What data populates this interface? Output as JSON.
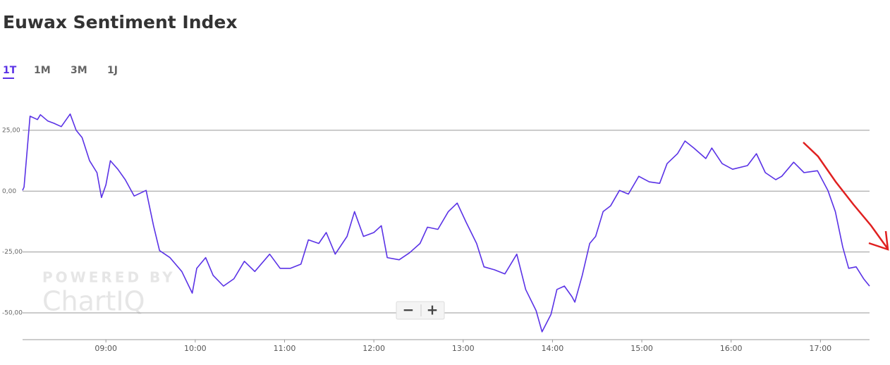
{
  "chart_data": {
    "type": "line",
    "title": "Euwax Sentiment Index",
    "x": [
      "08:04",
      "08:05",
      "08:09",
      "08:14",
      "08:16",
      "08:21",
      "08:25",
      "08:30",
      "08:36",
      "08:40",
      "08:44",
      "08:49",
      "08:54",
      "08:57",
      "09:00",
      "09:03",
      "09:08",
      "09:13",
      "09:19",
      "09:27",
      "09:32",
      "09:36",
      "09:43",
      "09:51",
      "09:58",
      "10:01",
      "10:07",
      "10:12",
      "10:19",
      "10:26",
      "10:33",
      "10:40",
      "10:50",
      "10:57",
      "11:04",
      "11:11",
      "11:16",
      "11:23",
      "11:28",
      "11:34",
      "11:42",
      "11:47",
      "11:53",
      "12:00",
      "12:05",
      "12:09",
      "12:17",
      "12:24",
      "12:31",
      "12:36",
      "12:43",
      "12:50",
      "12:56",
      "13:02",
      "13:09",
      "13:14",
      "13:21",
      "13:28",
      "13:36",
      "13:42",
      "13:49",
      "13:53",
      "13:59",
      "14:03",
      "14:08",
      "14:13",
      "14:15",
      "14:20",
      "14:25",
      "14:29",
      "14:34",
      "14:39",
      "14:45",
      "14:51",
      "14:58",
      "15:05",
      "15:12",
      "15:17",
      "15:24",
      "15:29",
      "15:35",
      "15:43",
      "15:47",
      "15:54",
      "16:01",
      "16:11",
      "16:17",
      "16:23",
      "16:30",
      "16:34",
      "16:42",
      "16:49",
      "16:58",
      "17:05",
      "17:10",
      "17:15",
      "17:19",
      "17:24",
      "17:29",
      "17:33"
    ],
    "values": [
      0.3,
      1.7,
      30.8,
      29.4,
      31.4,
      28.8,
      27.9,
      26.5,
      31.7,
      25,
      22,
      12.5,
      7.6,
      -2.6,
      2.6,
      12.5,
      9,
      4.7,
      -2,
      0.3,
      -14.2,
      -24.4,
      -27.3,
      -33,
      -41.9,
      -31.7,
      -27.3,
      -34.6,
      -39,
      -36,
      -28.8,
      -33,
      -25.9,
      -31.7,
      -31.7,
      -30,
      -20,
      -21.5,
      -17,
      -25.9,
      -18.6,
      -8.4,
      -18.6,
      -17,
      -14.2,
      -27.3,
      -28.2,
      -25.3,
      -21.5,
      -14.8,
      -15.7,
      -8.4,
      -4.9,
      -12.8,
      -21.5,
      -31.1,
      -32.3,
      -34,
      -25.9,
      -40.4,
      -49.1,
      -57.8,
      -50.6,
      -40.4,
      -39,
      -43.3,
      -45.6,
      -34.6,
      -21.5,
      -18.6,
      -8.4,
      -6.1,
      0.3,
      -1.2,
      6.1,
      3.8,
      3.2,
      11.3,
      15.4,
      20.6,
      17.7,
      13.4,
      17.7,
      11.3,
      9,
      10.5,
      15.4,
      7.6,
      4.7,
      6.1,
      11.9,
      7.6,
      8.4,
      0.3,
      -8.4,
      -23,
      -31.7,
      -31.1,
      -36,
      -39
    ],
    "color": "#5a32e6",
    "xlim": [
      "08:04",
      "17:33"
    ],
    "xticks": [
      "09:00",
      "10:00",
      "11:00",
      "12:00",
      "13:00",
      "14:00",
      "15:00",
      "16:00",
      "17:00"
    ],
    "ylim": [
      -61,
      38
    ],
    "yticks": [
      {
        "value": 25,
        "label": "25,00"
      },
      {
        "value": 0,
        "label": "0,00"
      },
      {
        "value": -25,
        "label": "-25,00"
      },
      {
        "value": -50,
        "label": "-50,00"
      }
    ],
    "grid": true
  },
  "tabs": [
    "1T",
    "1M",
    "3M",
    "1J"
  ],
  "active_tab": 0,
  "watermark": [
    "POWERED BY",
    "ChartIQ"
  ],
  "zoom_controls": [
    "−",
    "+"
  ]
}
